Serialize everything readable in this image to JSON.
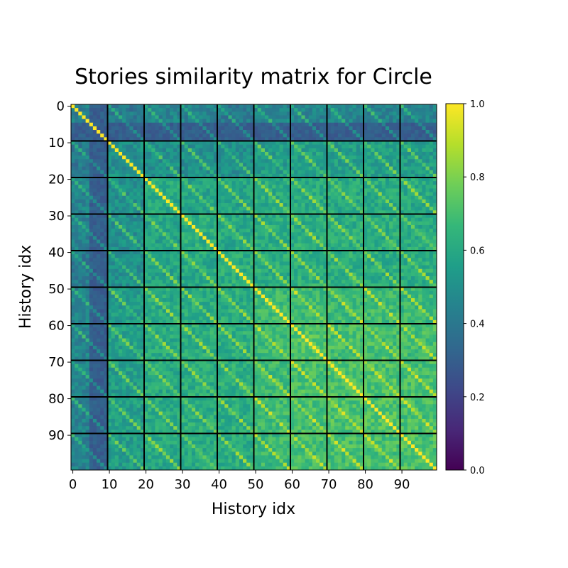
{
  "chart_data": {
    "type": "heatmap",
    "title": "Stories similarity matrix for Circle",
    "xlabel": "History idx",
    "ylabel": "History idx",
    "rows": 100,
    "cols": 100,
    "x_ticks": [
      0,
      10,
      20,
      30,
      40,
      50,
      60,
      70,
      80,
      90
    ],
    "x_tick_labels": [
      "0",
      "10",
      "20",
      "30",
      "40",
      "50",
      "60",
      "70",
      "80",
      "90"
    ],
    "y_ticks": [
      0,
      10,
      20,
      30,
      40,
      50,
      60,
      70,
      80,
      90
    ],
    "y_tick_labels": [
      "0",
      "10",
      "20",
      "30",
      "40",
      "50",
      "60",
      "70",
      "80",
      "90"
    ],
    "block_separators": [
      9.5,
      19.5,
      29.5,
      39.5,
      49.5,
      59.5,
      69.5,
      79.5,
      89.5
    ],
    "separator_color": "#000000",
    "colormap": "viridis",
    "colorbar": {
      "range": [
        0,
        1
      ],
      "ticks": [
        0.0,
        0.2,
        0.4,
        0.6,
        0.8,
        1.0
      ],
      "tick_labels": [
        "0.0",
        "0.2",
        "0.4",
        "0.6",
        "0.8",
        "1.0"
      ]
    },
    "diagonal_value": 1.0,
    "block_mean_similarity": [
      [
        0.43,
        0.4,
        0.45,
        0.44,
        0.41,
        0.47,
        0.46,
        0.46,
        0.45,
        0.44
      ],
      [
        0.4,
        0.5,
        0.5,
        0.5,
        0.5,
        0.55,
        0.57,
        0.56,
        0.56,
        0.55
      ],
      [
        0.45,
        0.5,
        0.6,
        0.58,
        0.58,
        0.61,
        0.61,
        0.61,
        0.61,
        0.6
      ],
      [
        0.44,
        0.5,
        0.58,
        0.62,
        0.6,
        0.62,
        0.62,
        0.62,
        0.62,
        0.61
      ],
      [
        0.41,
        0.5,
        0.58,
        0.6,
        0.62,
        0.62,
        0.63,
        0.63,
        0.62,
        0.62
      ],
      [
        0.47,
        0.55,
        0.61,
        0.62,
        0.62,
        0.68,
        0.68,
        0.68,
        0.68,
        0.67
      ],
      [
        0.46,
        0.57,
        0.61,
        0.62,
        0.63,
        0.68,
        0.72,
        0.7,
        0.7,
        0.69
      ],
      [
        0.46,
        0.56,
        0.61,
        0.62,
        0.63,
        0.68,
        0.7,
        0.72,
        0.71,
        0.7
      ],
      [
        0.45,
        0.56,
        0.61,
        0.62,
        0.62,
        0.68,
        0.7,
        0.71,
        0.72,
        0.7
      ],
      [
        0.44,
        0.55,
        0.6,
        0.61,
        0.62,
        0.67,
        0.69,
        0.7,
        0.7,
        0.71
      ]
    ],
    "low_similarity_rows": [
      5,
      6,
      7,
      8,
      9
    ],
    "low_similarity_value": 0.3
  }
}
